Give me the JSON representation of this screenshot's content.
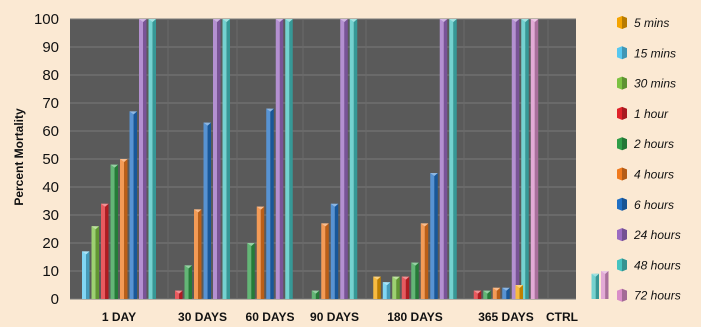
{
  "chart_data": {
    "type": "bar",
    "title": "",
    "xlabel": "",
    "ylabel": "Percent Mortality",
    "ylim": [
      0,
      100
    ],
    "yticks": [
      0,
      10,
      20,
      30,
      40,
      50,
      60,
      70,
      80,
      90,
      100
    ],
    "grid": true,
    "legend_position": "right",
    "categories": [
      "1 DAY",
      "30 DAYS",
      "60 DAYS",
      "90 DAYS",
      "180 DAYS",
      "365 DAYS",
      "CTRL"
    ],
    "series": [
      {
        "name": "5 mins",
        "color": "#f5a400",
        "values": [
          0,
          0,
          0,
          0,
          8,
          0,
          5
        ]
      },
      {
        "name": "15 mins",
        "color": "#57c8f0",
        "values": [
          17,
          0,
          0,
          0,
          6,
          0,
          0
        ]
      },
      {
        "name": "30 mins",
        "color": "#7cc242",
        "values": [
          26,
          0,
          0,
          0,
          8,
          0,
          0
        ]
      },
      {
        "name": "1 hour",
        "color": "#e0232a",
        "values": [
          34,
          3,
          0,
          0,
          8,
          3,
          0
        ]
      },
      {
        "name": "2 hours",
        "color": "#2f9e48",
        "values": [
          48,
          12,
          20,
          3,
          13,
          3,
          0
        ]
      },
      {
        "name": "4 hours",
        "color": "#f07a1e",
        "values": [
          50,
          32,
          33,
          27,
          27,
          4,
          0
        ]
      },
      {
        "name": "6 hours",
        "color": "#1f6fc4",
        "values": [
          67,
          63,
          68,
          34,
          45,
          4,
          0
        ]
      },
      {
        "name": "24 hours",
        "color": "#9b6bc2",
        "values": [
          100,
          100,
          100,
          100,
          100,
          100,
          0
        ]
      },
      {
        "name": "48 hours",
        "color": "#45c3c0",
        "values": [
          100,
          100,
          100,
          100,
          100,
          100,
          9
        ]
      },
      {
        "name": "72 hours",
        "color": "#d98ec8",
        "values": [
          0,
          0,
          0,
          0,
          0,
          100,
          10
        ]
      }
    ]
  }
}
